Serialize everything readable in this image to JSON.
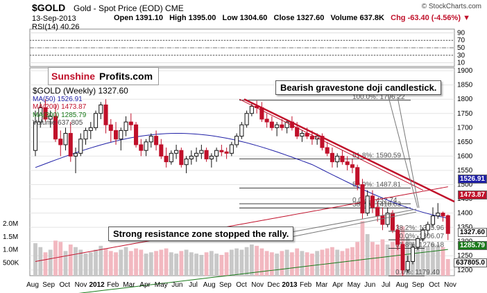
{
  "header": {
    "symbol": "$GOLD",
    "subtitle": "Gold - Spot Price (EOD)  CME",
    "date": "13-Sep-2013",
    "open": "Open 1391.10",
    "high": "High 1395.00",
    "low": "Low 1304.60",
    "close": "Close 1327.60",
    "volume": "Volume 637.8K",
    "change": "Chg -63.40 (-4.56%)",
    "copyright": "© StockCharts.com"
  },
  "rsi_label": "RSI(14) 40.26",
  "brand": {
    "part1": "Sunshine",
    "part2": "Profits.com"
  },
  "legend": {
    "main": "$GOLD (Weekly) 1327.60",
    "ma50": "MA(50) 1526.91",
    "ma200": "MA(200) 1473.87",
    "ma300": "MA(300) 1285.79",
    "volume": "Volume 637,805"
  },
  "annotations": {
    "doji": "Bearish gravestone doji candlestick.",
    "resistance": "Strong resistance zone stopped the rally."
  },
  "tags": {
    "ma50": "1526.91",
    "ma200": "1473.87",
    "close": "1327.60",
    "ma300": "1285.79",
    "vol": "637805.0"
  },
  "colors": {
    "up": "#111111",
    "down": "#c0102a",
    "ma50": "#1f1fa6",
    "ma200": "#c0102a",
    "ma300": "#1a7a1a",
    "trend": "#c0102a"
  },
  "chart_data": {
    "type": "candlestick",
    "price_ticks": [
      1200,
      1250,
      1300,
      1350,
      1400,
      1450,
      1500,
      1550,
      1600,
      1650,
      1700,
      1750,
      1800,
      1850,
      1900
    ],
    "rsi_ticks": [
      10,
      30,
      50,
      70,
      90
    ],
    "volume_ticks": [
      "500K",
      "1.0M",
      "1.5M",
      "2.0M"
    ],
    "x_labels": [
      "Aug",
      "Sep",
      "Oct",
      "Nov",
      "2012",
      "Feb",
      "Mar",
      "Apr",
      "May",
      "Jun",
      "Jul",
      "Aug",
      "Sep",
      "Oct",
      "Nov",
      "Dec",
      "2013",
      "Feb",
      "Mar",
      "Apr",
      "May",
      "Jun",
      "Jul",
      "Aug",
      "Sep",
      "Oct",
      "Nov"
    ],
    "fib_levels": [
      {
        "label": "100.0%: 1796.22",
        "value": 1796.22
      },
      {
        "label": "61.8%: 1590.59",
        "value": 1590.59
      },
      {
        "label": "50.0%: 1487.81",
        "value": 1487.81
      },
      {
        "label": "38.2%: 1418.03",
        "value": 1418.03
      },
      {
        "label": "0.0%: 1432.74",
        "value": 1432.74
      },
      {
        "label": "38.2%: 1335.96",
        "value": 1335.96
      },
      {
        "label": "50.0%: 1306.07",
        "value": 1306.07
      },
      {
        "label": "61.8%: 1276.18",
        "value": 1276.18
      },
      {
        "label": "0.0%: 1179.40",
        "value": 1179.4
      }
    ],
    "ohlc": [
      [
        1620,
        1760,
        1600,
        1720
      ],
      [
        1720,
        1790,
        1700,
        1770
      ],
      [
        1770,
        1800,
        1720,
        1730
      ],
      [
        1730,
        1760,
        1700,
        1740
      ],
      [
        1740,
        1780,
        1650,
        1660
      ],
      [
        1660,
        1690,
        1600,
        1640
      ],
      [
        1640,
        1700,
        1620,
        1680
      ],
      [
        1680,
        1720,
        1580,
        1600
      ],
      [
        1600,
        1630,
        1540,
        1610
      ],
      [
        1610,
        1680,
        1600,
        1660
      ],
      [
        1660,
        1700,
        1640,
        1690
      ],
      [
        1690,
        1720,
        1660,
        1700
      ],
      [
        1700,
        1760,
        1690,
        1750
      ],
      [
        1750,
        1790,
        1730,
        1780
      ],
      [
        1780,
        1800,
        1680,
        1710
      ],
      [
        1710,
        1730,
        1650,
        1690
      ],
      [
        1690,
        1720,
        1640,
        1660
      ],
      [
        1660,
        1700,
        1620,
        1690
      ],
      [
        1690,
        1740,
        1670,
        1720
      ],
      [
        1720,
        1750,
        1690,
        1710
      ],
      [
        1710,
        1720,
        1630,
        1640
      ],
      [
        1640,
        1660,
        1600,
        1620
      ],
      [
        1620,
        1660,
        1600,
        1650
      ],
      [
        1650,
        1680,
        1630,
        1670
      ],
      [
        1670,
        1690,
        1620,
        1640
      ],
      [
        1640,
        1660,
        1590,
        1600
      ],
      [
        1600,
        1630,
        1560,
        1580
      ],
      [
        1580,
        1620,
        1570,
        1610
      ],
      [
        1610,
        1640,
        1590,
        1620
      ],
      [
        1620,
        1630,
        1560,
        1570
      ],
      [
        1570,
        1600,
        1540,
        1590
      ],
      [
        1590,
        1620,
        1570,
        1600
      ],
      [
        1600,
        1630,
        1580,
        1610
      ],
      [
        1610,
        1640,
        1590,
        1620
      ],
      [
        1620,
        1630,
        1580,
        1590
      ],
      [
        1590,
        1610,
        1560,
        1600
      ],
      [
        1600,
        1630,
        1580,
        1620
      ],
      [
        1620,
        1640,
        1600,
        1615
      ],
      [
        1615,
        1630,
        1590,
        1610
      ],
      [
        1610,
        1650,
        1600,
        1640
      ],
      [
        1640,
        1680,
        1630,
        1670
      ],
      [
        1670,
        1720,
        1660,
        1710
      ],
      [
        1710,
        1760,
        1700,
        1750
      ],
      [
        1750,
        1790,
        1740,
        1775
      ],
      [
        1775,
        1795,
        1750,
        1770
      ],
      [
        1770,
        1790,
        1720,
        1730
      ],
      [
        1730,
        1750,
        1700,
        1720
      ],
      [
        1720,
        1740,
        1690,
        1700
      ],
      [
        1700,
        1720,
        1670,
        1710
      ],
      [
        1710,
        1730,
        1690,
        1700
      ],
      [
        1700,
        1730,
        1680,
        1720
      ],
      [
        1720,
        1740,
        1690,
        1700
      ],
      [
        1700,
        1720,
        1660,
        1670
      ],
      [
        1670,
        1690,
        1650,
        1680
      ],
      [
        1680,
        1700,
        1660,
        1670
      ],
      [
        1670,
        1690,
        1640,
        1660
      ],
      [
        1660,
        1680,
        1640,
        1670
      ],
      [
        1670,
        1680,
        1620,
        1630
      ],
      [
        1630,
        1650,
        1600,
        1610
      ],
      [
        1610,
        1630,
        1560,
        1580
      ],
      [
        1580,
        1610,
        1560,
        1600
      ],
      [
        1600,
        1620,
        1570,
        1580
      ],
      [
        1580,
        1600,
        1550,
        1570
      ],
      [
        1570,
        1590,
        1540,
        1560
      ],
      [
        1560,
        1570,
        1480,
        1500
      ],
      [
        1500,
        1520,
        1380,
        1400
      ],
      [
        1400,
        1480,
        1390,
        1460
      ],
      [
        1460,
        1480,
        1400,
        1420
      ],
      [
        1420,
        1440,
        1370,
        1390
      ],
      [
        1390,
        1420,
        1340,
        1360
      ],
      [
        1360,
        1420,
        1350,
        1400
      ],
      [
        1400,
        1410,
        1330,
        1340
      ],
      [
        1340,
        1360,
        1270,
        1290
      ],
      [
        1290,
        1300,
        1180,
        1200
      ],
      [
        1200,
        1250,
        1190,
        1230
      ],
      [
        1230,
        1290,
        1220,
        1280
      ],
      [
        1280,
        1320,
        1270,
        1310
      ],
      [
        1310,
        1350,
        1300,
        1340
      ],
      [
        1340,
        1370,
        1320,
        1360
      ],
      [
        1360,
        1420,
        1350,
        1390
      ],
      [
        1390,
        1435,
        1380,
        1400
      ],
      [
        1400,
        1405,
        1370,
        1390
      ],
      [
        1391,
        1395,
        1305,
        1328
      ]
    ],
    "volume_values": [
      1.25,
      1.1,
      0.9,
      1.0,
      1.35,
      1.3,
      0.95,
      1.2,
      1.1,
      1.0,
      0.85,
      0.9,
      1.0,
      1.15,
      1.05,
      0.95,
      0.9,
      1.0,
      1.1,
      0.95,
      1.05,
      1.0,
      0.85,
      0.9,
      0.95,
      1.0,
      1.05,
      0.9,
      0.85,
      0.95,
      1.0,
      0.9,
      0.85,
      0.8,
      0.9,
      0.95,
      0.85,
      0.8,
      0.9,
      1.0,
      1.05,
      1.0,
      1.1,
      1.2,
      1.15,
      1.05,
      0.95,
      0.9,
      0.85,
      0.95,
      1.0,
      0.9,
      1.05,
      0.95,
      0.9,
      0.85,
      0.95,
      1.0,
      1.05,
      1.1,
      1.0,
      0.95,
      1.05,
      1.1,
      1.3,
      2.1,
      1.6,
      1.3,
      1.2,
      1.4,
      1.2,
      1.3,
      1.6,
      1.9,
      1.5,
      1.3,
      1.2,
      1.1,
      1.15,
      1.25,
      1.2,
      1.1,
      0.64
    ]
  }
}
